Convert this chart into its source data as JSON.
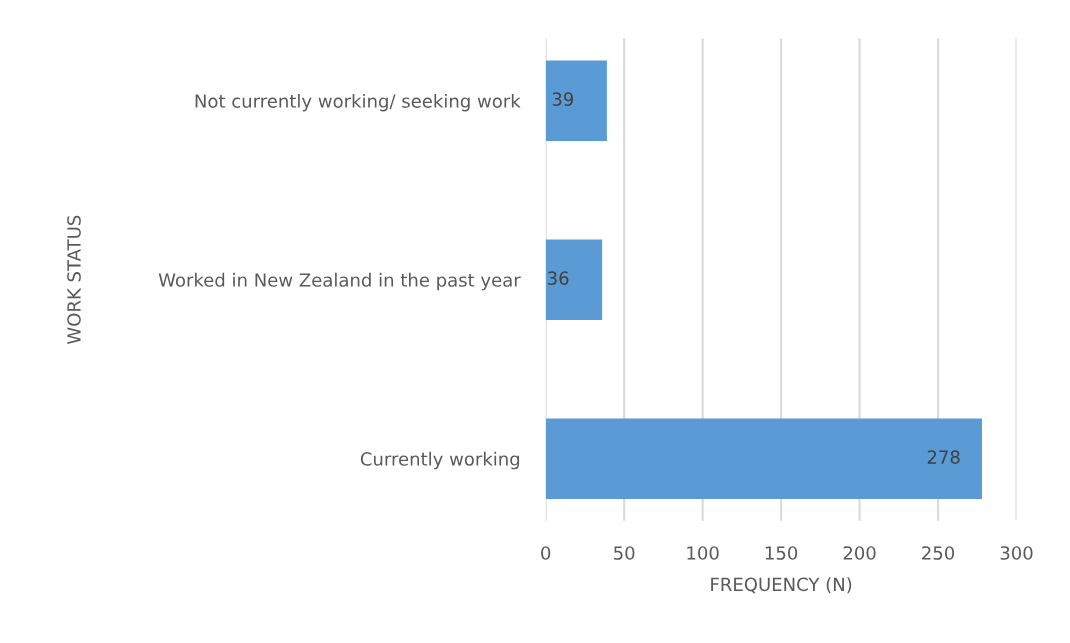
{
  "chart_data": {
    "type": "bar",
    "orientation": "horizontal",
    "xlabel": "FREQUENCY (N)",
    "ylabel": "WORK STATUS",
    "categories": [
      "Not currently working/ seeking work",
      "Worked in New Zealand in the past year",
      "Currently working"
    ],
    "values": [
      39,
      36,
      278
    ],
    "color": "#5b9bd5",
    "xlim": [
      0,
      300
    ],
    "xticks": [
      0,
      50,
      100,
      150,
      200,
      250,
      300
    ],
    "grid": "x",
    "data_labels": true
  }
}
